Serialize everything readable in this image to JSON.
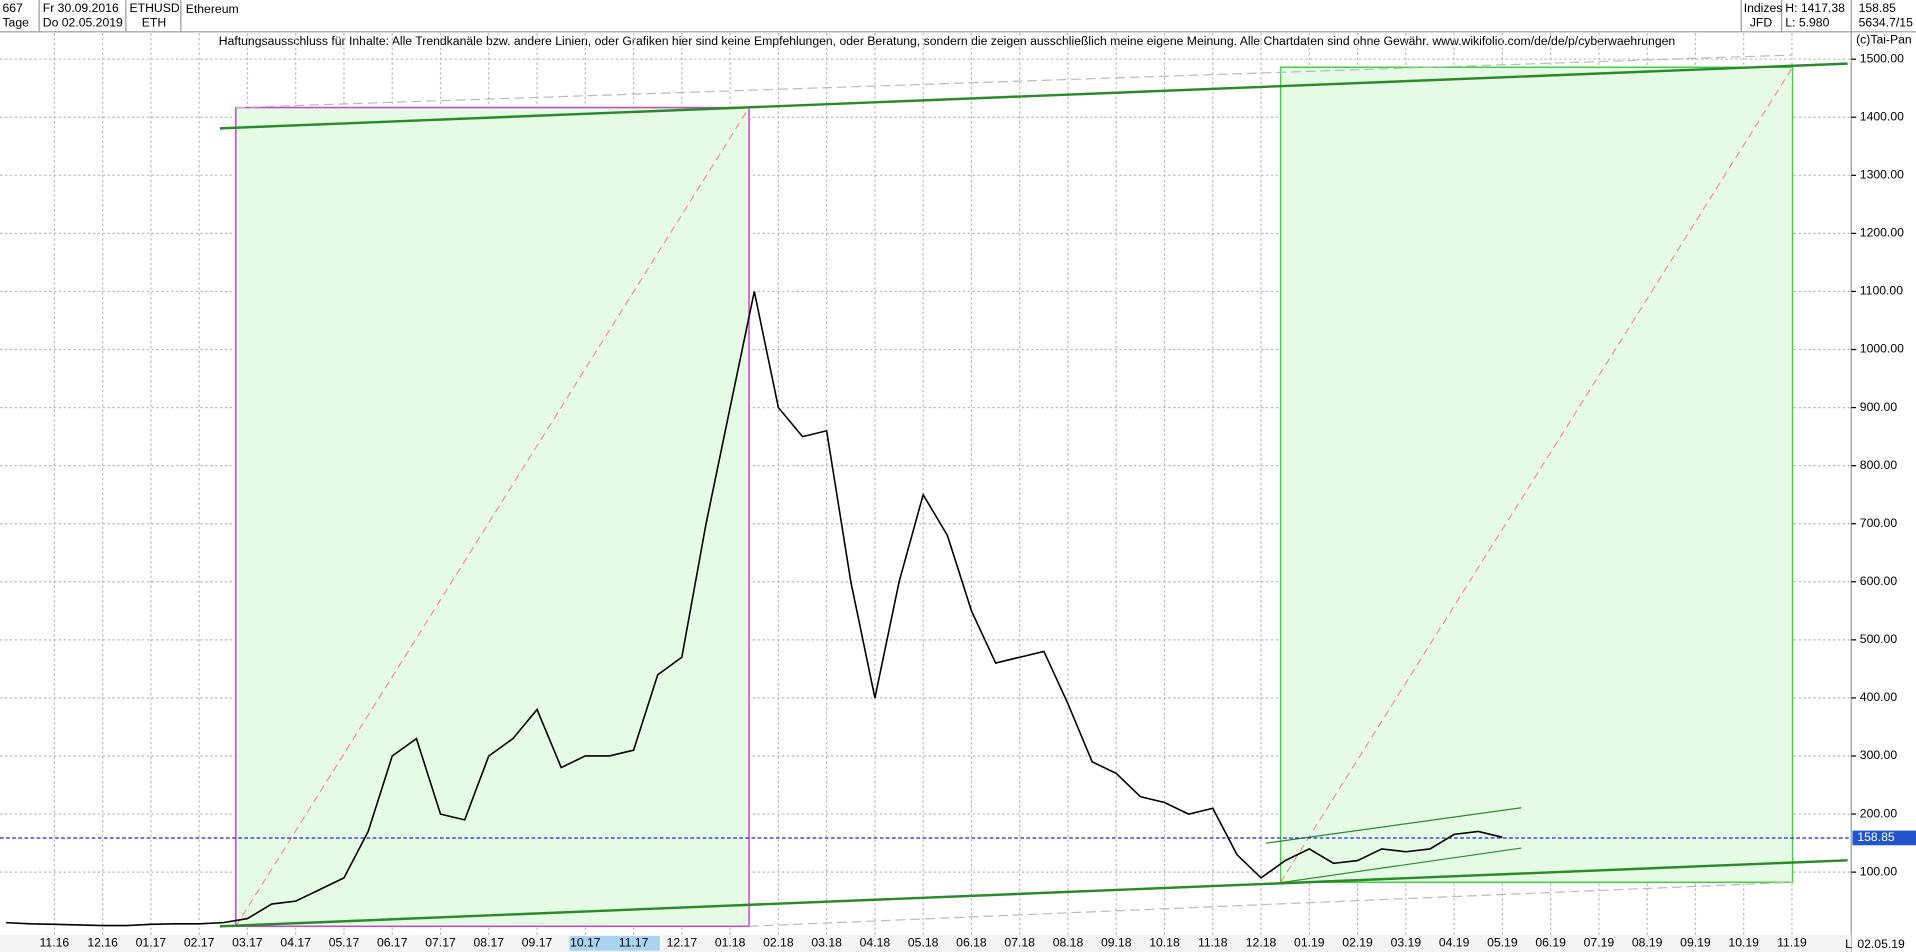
{
  "header": {
    "id": "667",
    "from": "Fr 30.09.2016",
    "period": "Tage",
    "to": "Do 02.05.2019",
    "symbol": "ETHUSD",
    "short": "ETH",
    "name": "Ethereum",
    "market": "Indizes",
    "broker": "JFD",
    "high": "H: 1417.38",
    "low": "L: 5.980",
    "last": "158.85",
    "info": "5634.7/15",
    "copyright": "(c)Tai-Pan",
    "scale_mode": "L",
    "last_date": "02.05.19"
  },
  "disclaimer": "Haftungsausschluss für Inhalte: Alle Trendkanäle bzw. andere Linien, oder Grafiken hier sind keine Empfehlungen, oder Beratung, sondern die zeigen ausschließlich meine eigene Meinung. Alle Chartdaten sind ohne Gewähr.  www.wikifolio.com/de/de/p/cyberwaehrungen",
  "chart_data": {
    "type": "line",
    "categories": [
      null,
      null,
      "11.16",
      null,
      "12.16",
      null,
      "01.17",
      null,
      "02.17",
      null,
      "03.17",
      null,
      "04.17",
      null,
      "05.17",
      null,
      "06.17",
      null,
      "07.17",
      null,
      "08.17",
      null,
      "09.17",
      null,
      "10.17",
      null,
      "11.17",
      null,
      "12.17",
      null,
      "01.18",
      null,
      "02.18",
      null,
      "03.18",
      null,
      "04.18",
      null,
      "05.18",
      null,
      "06.18",
      null,
      "07.18",
      null,
      "08.18",
      null,
      "09.18",
      null,
      "10.18",
      null,
      "11.18",
      null,
      "12.18",
      null,
      "01.19",
      null,
      "02.19",
      null,
      "03.19",
      null,
      "04.19",
      null,
      "05.19",
      null,
      "06.19",
      null,
      "07.19",
      null,
      "08.19",
      null,
      "09.19",
      null,
      "10.19",
      null,
      "11.19",
      null
    ],
    "series": [
      {
        "name": "ETHUSD",
        "color": "#000000",
        "values": [
          13,
          11,
          10,
          9,
          8,
          8,
          10,
          11,
          11,
          13,
          20,
          45,
          50,
          70,
          90,
          170,
          300,
          330,
          200,
          190,
          300,
          330,
          380,
          280,
          300,
          300,
          310,
          440,
          470,
          700,
          900,
          1100,
          900,
          850,
          860,
          600,
          400,
          600,
          750,
          680,
          550,
          460,
          470,
          480,
          390,
          290,
          270,
          230,
          220,
          200,
          210,
          130,
          90,
          120,
          140,
          115,
          120,
          140,
          135,
          140,
          165,
          170,
          160,
          null,
          null,
          null,
          null,
          null,
          null,
          null,
          null,
          null,
          null,
          null,
          null,
          null
        ]
      }
    ],
    "current_price": {
      "value": 158.85,
      "label": "158.85"
    },
    "ylim": [
      -8,
      1545
    ],
    "yticks": [
      {
        "value": 100,
        "label": "100.00"
      },
      {
        "value": 200,
        "label": "200.00"
      },
      {
        "value": 300,
        "label": "300.00"
      },
      {
        "value": 400,
        "label": "400.00"
      },
      {
        "value": 500,
        "label": "500.00"
      },
      {
        "value": 600,
        "label": "600.00"
      },
      {
        "value": 700,
        "label": "700.00"
      },
      {
        "value": 800,
        "label": "800.00"
      },
      {
        "value": 900,
        "label": "900.00"
      },
      {
        "value": 1000,
        "label": "1000.00"
      },
      {
        "value": 1100,
        "label": "1100.00"
      },
      {
        "value": 1200,
        "label": "1200.00"
      },
      {
        "value": 1300,
        "label": "1300.00"
      },
      {
        "value": 1400,
        "label": "1400.00"
      },
      {
        "value": 1500,
        "label": "1500.00"
      }
    ],
    "grid": true
  }
}
